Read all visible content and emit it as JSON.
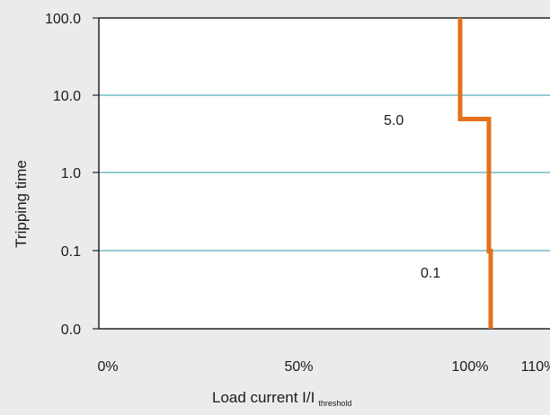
{
  "chart_data": {
    "type": "line",
    "ylabel": "Tripping time",
    "xlabel_main": "Load current I/I",
    "xlabel_sub": "threshold",
    "y_scale": "log",
    "y_ticks": [
      "100.0",
      "10.0",
      "1.0",
      "0.1",
      "0.0"
    ],
    "x_ticks": [
      {
        "label": "0%",
        "value": 0
      },
      {
        "label": "50%",
        "value": 50
      },
      {
        "label": "100%",
        "value": 100
      },
      {
        "label": "110%",
        "value": 110
      }
    ],
    "grid": "horizontal",
    "series": [
      {
        "color": "#e5701a",
        "points": [
          {
            "x": 103,
            "y": 100.0
          },
          {
            "x": 103,
            "y": 5.0
          },
          {
            "x": 109,
            "y": 5.0
          },
          {
            "x": 109,
            "y": 0.1
          },
          {
            "x": 109.3,
            "y": 0.1
          },
          {
            "x": 109.3,
            "y": 0.01
          }
        ]
      }
    ],
    "annotations": [
      {
        "text": "5.0"
      },
      {
        "text": "0.1"
      }
    ],
    "colors": {
      "background": "#e9ebec",
      "plot_background": "#ffffff",
      "grid": "#2a9aa6",
      "axis": "#222222",
      "line": "#e5701a"
    }
  }
}
